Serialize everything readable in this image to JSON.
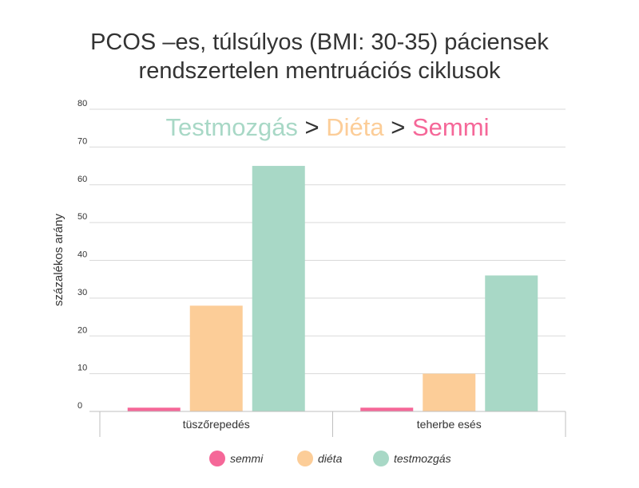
{
  "chart_data": {
    "type": "bar",
    "title_lines": [
      "PCOS –es, túlsúlyos (BMI: 30-35) páciensek",
      "rendszertelen mentruációs ciklusok"
    ],
    "subtitle": {
      "parts": [
        {
          "text": "Testmozgás",
          "color": "#a8d8c6"
        },
        {
          "text": " > ",
          "color": "#333333"
        },
        {
          "text": "Diéta",
          "color": "#fccd98"
        },
        {
          "text": " > ",
          "color": "#333333"
        },
        {
          "text": "Semmi",
          "color": "#f56798"
        }
      ]
    },
    "ylabel": "százalékos arány",
    "xlabel": "",
    "ylim": [
      0,
      80
    ],
    "yticks": [
      0,
      10,
      20,
      30,
      40,
      50,
      60,
      70,
      80
    ],
    "grid": true,
    "legend_position": "bottom",
    "categories": [
      "tüszőrepedés",
      "teherbe esés"
    ],
    "series": [
      {
        "name": "semmi",
        "color": "#f56798",
        "values": [
          1,
          1
        ]
      },
      {
        "name": "diéta",
        "color": "#fccd98",
        "values": [
          28,
          10
        ]
      },
      {
        "name": "testmozgás",
        "color": "#a8d8c6",
        "values": [
          65,
          36
        ]
      }
    ]
  }
}
